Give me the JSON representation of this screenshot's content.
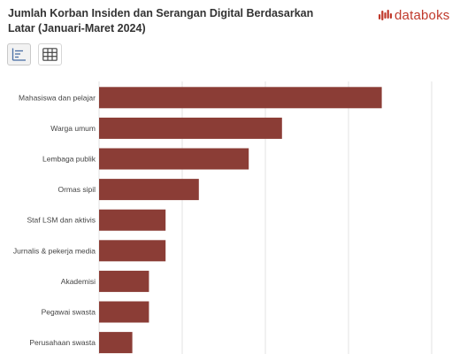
{
  "header": {
    "title": "Jumlah Korban Insiden dan Serangan Digital Berdasarkan Latar (Januari-Maret 2024)",
    "brand": "databoks"
  },
  "toolbar": {
    "buttons": [
      {
        "icon": "bar-chart-icon",
        "active": true
      },
      {
        "icon": "table-grid-icon",
        "active": false
      }
    ]
  },
  "colors": {
    "bar": "#8b3d36",
    "grid": "#e3e3e3",
    "brand": "#c0392b"
  },
  "chart_data": {
    "type": "bar",
    "orientation": "horizontal",
    "categories": [
      "Mahasiswa dan pelajar",
      "Warga umum",
      "Lembaga publik",
      "Ormas sipil",
      "Staf LSM dan aktivis",
      "Jurnalis & pekerja media",
      "Akademisi",
      "Pegawai swasta",
      "Perusahaan swasta"
    ],
    "values": [
      34,
      22,
      18,
      12,
      8,
      8,
      6,
      6,
      4
    ],
    "xlim": [
      0,
      40
    ],
    "grid": true,
    "title": "Jumlah Korban Insiden dan Serangan Digital Berdasarkan Latar (Januari-Maret 2024)",
    "xlabel": "",
    "ylabel": ""
  }
}
